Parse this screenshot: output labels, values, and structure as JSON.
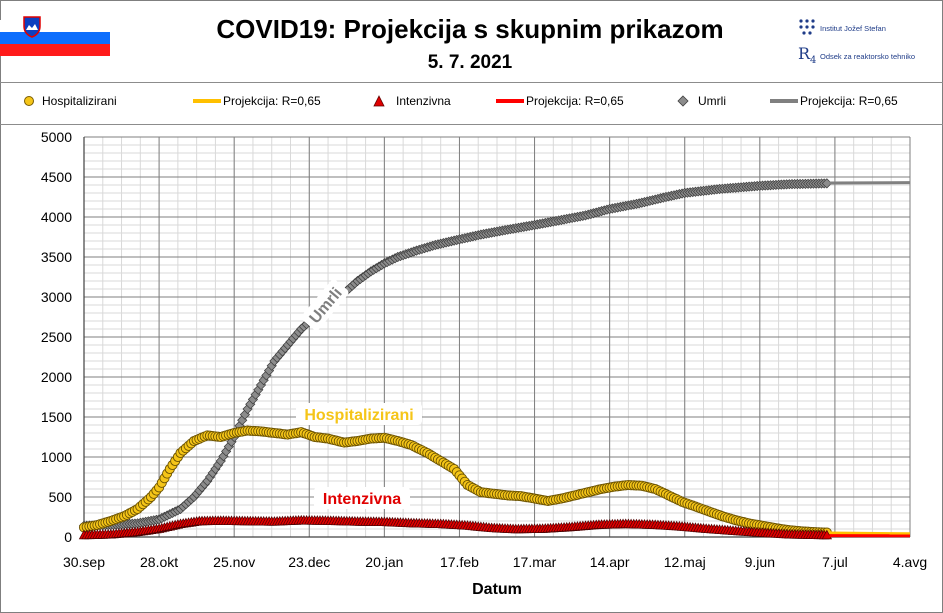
{
  "header": {
    "title": "COVID19: Projekcija  s skupnim prikazom",
    "date": "5. 7. 2021",
    "logo_ijs": "Institut Jožef Stefan",
    "logo_r4": "Odsek za reaktorsko tehniko"
  },
  "legend": [
    {
      "label": "Hospitalizirani",
      "marker": "circle",
      "color": "#f5c518"
    },
    {
      "label": "Projekcija: R=0,65",
      "marker": "line",
      "color": "#ffc000"
    },
    {
      "label": "Intenzivna",
      "marker": "triangle",
      "color": "#e00000"
    },
    {
      "label": "Projekcija: R=0,65",
      "marker": "line",
      "color": "#ff0000"
    },
    {
      "label": "Umrli",
      "marker": "diamond",
      "color": "#8c8c8c"
    },
    {
      "label": "Projekcija: R=0,65",
      "marker": "line",
      "color": "#808080"
    }
  ],
  "annotations": {
    "umrli": "Umrli",
    "hospitalizirani": "Hospitalizirani",
    "intenzivna": "Intenzivna"
  },
  "chart_data": {
    "type": "line",
    "xlabel": "Datum",
    "ylabel": "",
    "ylim": [
      0,
      5000
    ],
    "yticks": [
      0,
      500,
      1000,
      1500,
      2000,
      2500,
      3000,
      3500,
      4000,
      4500,
      5000
    ],
    "xlim": [
      "2020-09-30",
      "2021-08-04"
    ],
    "xticks": [
      {
        "date": "2020-09-30",
        "label": "30.sep"
      },
      {
        "date": "2020-10-28",
        "label": "28.okt"
      },
      {
        "date": "2020-11-25",
        "label": "25.nov"
      },
      {
        "date": "2020-12-23",
        "label": "23.dec"
      },
      {
        "date": "2021-01-20",
        "label": "20.jan"
      },
      {
        "date": "2021-02-17",
        "label": "17.feb"
      },
      {
        "date": "2021-03-17",
        "label": "17.mar"
      },
      {
        "date": "2021-04-14",
        "label": "14.apr"
      },
      {
        "date": "2021-05-12",
        "label": "12.maj"
      },
      {
        "date": "2021-06-09",
        "label": "9.jun"
      },
      {
        "date": "2021-07-07",
        "label": "7.jul"
      },
      {
        "date": "2021-08-04",
        "label": "4.avg"
      }
    ],
    "grid": true,
    "series": [
      {
        "name": "Hospitalizirani",
        "color": "#f5c518",
        "marker": "circle",
        "points": [
          [
            "2020-09-30",
            120
          ],
          [
            "2020-10-05",
            150
          ],
          [
            "2020-10-10",
            200
          ],
          [
            "2020-10-15",
            260
          ],
          [
            "2020-10-20",
            350
          ],
          [
            "2020-10-25",
            500
          ],
          [
            "2020-10-28",
            620
          ],
          [
            "2020-11-01",
            850
          ],
          [
            "2020-11-05",
            1050
          ],
          [
            "2020-11-10",
            1200
          ],
          [
            "2020-11-15",
            1270
          ],
          [
            "2020-11-20",
            1250
          ],
          [
            "2020-11-25",
            1300
          ],
          [
            "2020-11-30",
            1330
          ],
          [
            "2020-12-05",
            1320
          ],
          [
            "2020-12-10",
            1300
          ],
          [
            "2020-12-15",
            1280
          ],
          [
            "2020-12-20",
            1310
          ],
          [
            "2020-12-25",
            1250
          ],
          [
            "2020-12-30",
            1230
          ],
          [
            "2021-01-05",
            1180
          ],
          [
            "2021-01-10",
            1200
          ],
          [
            "2021-01-15",
            1230
          ],
          [
            "2021-01-20",
            1240
          ],
          [
            "2021-01-25",
            1200
          ],
          [
            "2021-01-30",
            1150
          ],
          [
            "2021-02-05",
            1050
          ],
          [
            "2021-02-10",
            950
          ],
          [
            "2021-02-15",
            850
          ],
          [
            "2021-02-20",
            650
          ],
          [
            "2021-02-25",
            560
          ],
          [
            "2021-03-02",
            540
          ],
          [
            "2021-03-07",
            520
          ],
          [
            "2021-03-12",
            510
          ],
          [
            "2021-03-17",
            480
          ],
          [
            "2021-03-22",
            450
          ],
          [
            "2021-03-27",
            480
          ],
          [
            "2021-04-01",
            520
          ],
          [
            "2021-04-06",
            560
          ],
          [
            "2021-04-11",
            600
          ],
          [
            "2021-04-16",
            630
          ],
          [
            "2021-04-21",
            650
          ],
          [
            "2021-04-26",
            640
          ],
          [
            "2021-05-01",
            600
          ],
          [
            "2021-05-06",
            520
          ],
          [
            "2021-05-11",
            440
          ],
          [
            "2021-05-16",
            380
          ],
          [
            "2021-05-21",
            320
          ],
          [
            "2021-05-26",
            260
          ],
          [
            "2021-05-31",
            210
          ],
          [
            "2021-06-05",
            170
          ],
          [
            "2021-06-10",
            140
          ],
          [
            "2021-06-15",
            110
          ],
          [
            "2021-06-20",
            85
          ],
          [
            "2021-06-25",
            70
          ],
          [
            "2021-06-30",
            60
          ],
          [
            "2021-07-04",
            55
          ]
        ]
      },
      {
        "name": "Projekcija: R=0,65",
        "color": "#ffc000",
        "marker": "line",
        "points": [
          [
            "2021-07-05",
            50
          ],
          [
            "2021-08-04",
            40
          ]
        ]
      },
      {
        "name": "Intenzivna",
        "color": "#e00000",
        "marker": "triangle",
        "points": [
          [
            "2020-09-30",
            20
          ],
          [
            "2020-10-10",
            30
          ],
          [
            "2020-10-20",
            60
          ],
          [
            "2020-10-28",
            100
          ],
          [
            "2020-11-05",
            160
          ],
          [
            "2020-11-12",
            195
          ],
          [
            "2020-11-20",
            200
          ],
          [
            "2020-11-30",
            195
          ],
          [
            "2020-12-10",
            190
          ],
          [
            "2020-12-20",
            205
          ],
          [
            "2020-12-30",
            200
          ],
          [
            "2021-01-10",
            190
          ],
          [
            "2021-01-20",
            185
          ],
          [
            "2021-01-30",
            170
          ],
          [
            "2021-02-10",
            160
          ],
          [
            "2021-02-20",
            140
          ],
          [
            "2021-03-01",
            110
          ],
          [
            "2021-03-10",
            95
          ],
          [
            "2021-03-20",
            100
          ],
          [
            "2021-03-30",
            120
          ],
          [
            "2021-04-10",
            150
          ],
          [
            "2021-04-20",
            160
          ],
          [
            "2021-04-30",
            150
          ],
          [
            "2021-05-10",
            130
          ],
          [
            "2021-05-20",
            100
          ],
          [
            "2021-05-30",
            75
          ],
          [
            "2021-06-10",
            50
          ],
          [
            "2021-06-20",
            30
          ],
          [
            "2021-07-04",
            20
          ]
        ]
      },
      {
        "name": "Projekcija: R=0,65",
        "color": "#ff0000",
        "marker": "line",
        "points": [
          [
            "2021-07-05",
            18
          ],
          [
            "2021-08-04",
            15
          ]
        ]
      },
      {
        "name": "Umrli",
        "color": "#8c8c8c",
        "marker": "diamond",
        "points": [
          [
            "2020-09-30",
            140
          ],
          [
            "2020-10-10",
            150
          ],
          [
            "2020-10-20",
            170
          ],
          [
            "2020-10-28",
            220
          ],
          [
            "2020-11-05",
            350
          ],
          [
            "2020-11-10",
            500
          ],
          [
            "2020-11-15",
            700
          ],
          [
            "2020-11-20",
            950
          ],
          [
            "2020-11-25",
            1250
          ],
          [
            "2020-11-30",
            1600
          ],
          [
            "2020-12-05",
            1900
          ],
          [
            "2020-12-10",
            2200
          ],
          [
            "2020-12-15",
            2400
          ],
          [
            "2020-12-20",
            2600
          ],
          [
            "2020-12-25",
            2750
          ],
          [
            "2020-12-30",
            2900
          ],
          [
            "2021-01-05",
            3050
          ],
          [
            "2021-01-10",
            3200
          ],
          [
            "2021-01-15",
            3320
          ],
          [
            "2021-01-20",
            3420
          ],
          [
            "2021-01-25",
            3500
          ],
          [
            "2021-02-01",
            3580
          ],
          [
            "2021-02-08",
            3650
          ],
          [
            "2021-02-17",
            3720
          ],
          [
            "2021-02-25",
            3780
          ],
          [
            "2021-03-05",
            3830
          ],
          [
            "2021-03-17",
            3900
          ],
          [
            "2021-03-25",
            3950
          ],
          [
            "2021-04-05",
            4020
          ],
          [
            "2021-04-14",
            4100
          ],
          [
            "2021-04-25",
            4170
          ],
          [
            "2021-05-05",
            4250
          ],
          [
            "2021-05-12",
            4300
          ],
          [
            "2021-05-25",
            4350
          ],
          [
            "2021-06-09",
            4390
          ],
          [
            "2021-06-20",
            4410
          ],
          [
            "2021-07-04",
            4420
          ]
        ]
      },
      {
        "name": "Projekcija: R=0,65",
        "color": "#808080",
        "marker": "line",
        "points": [
          [
            "2021-07-05",
            4425
          ],
          [
            "2021-08-04",
            4430
          ]
        ]
      }
    ]
  }
}
